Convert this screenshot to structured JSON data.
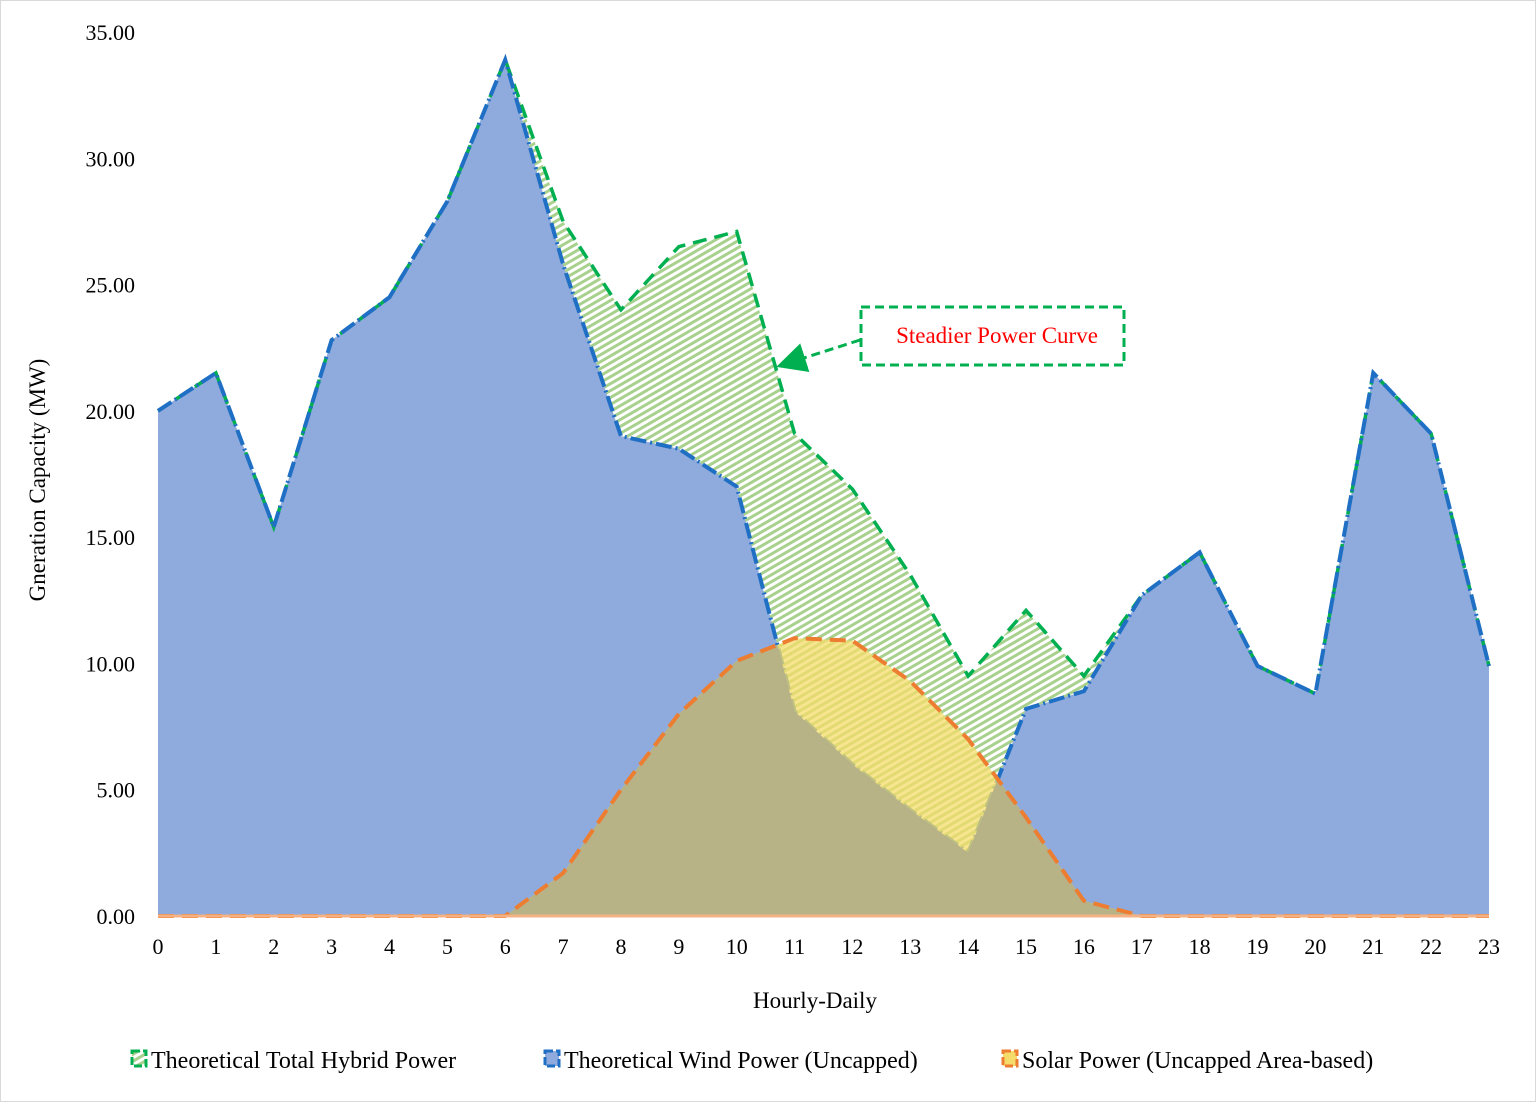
{
  "chart_data": {
    "type": "area",
    "title": "",
    "xlabel": "Hourly-Daily",
    "ylabel": "Gneration Capacity (MW)",
    "ylim": [
      0,
      35
    ],
    "yticks": [
      "0.00",
      "5.00",
      "10.00",
      "15.00",
      "20.00",
      "25.00",
      "30.00",
      "35.00"
    ],
    "x": [
      0,
      1,
      2,
      3,
      4,
      5,
      6,
      7,
      8,
      9,
      10,
      11,
      12,
      13,
      14,
      15,
      16,
      17,
      18,
      19,
      20,
      21,
      22,
      23
    ],
    "grid": false,
    "legend_position": "bottom",
    "series": [
      {
        "name": "Theoretical Total Hybrid Power",
        "color": "#00B050",
        "values": [
          20.0,
          21.5,
          15.4,
          22.8,
          24.5,
          28.3,
          33.9,
          27.5,
          24.0,
          26.5,
          27.1,
          19.1,
          16.9,
          13.5,
          9.5,
          12.1,
          9.5,
          12.7,
          14.4,
          9.9,
          8.8,
          21.5,
          19.1,
          9.9
        ]
      },
      {
        "name": "Theoretical Wind Power (Uncapped)",
        "color": "#1F6FC5",
        "values": [
          20.0,
          21.5,
          15.4,
          22.8,
          24.5,
          28.3,
          33.9,
          25.8,
          19.0,
          18.5,
          17.0,
          8.1,
          6.0,
          4.2,
          2.5,
          8.2,
          8.9,
          12.7,
          14.4,
          9.9,
          8.8,
          21.5,
          19.1,
          9.9
        ]
      },
      {
        "name": "Solar Power (Uncapped Area-based)",
        "color": "#ED7D31",
        "values": [
          0,
          0,
          0,
          0,
          0,
          0,
          0,
          1.7,
          5.0,
          8.0,
          10.1,
          11.0,
          10.9,
          9.3,
          7.0,
          3.9,
          0.6,
          0,
          0,
          0,
          0,
          0,
          0,
          0
        ]
      }
    ],
    "annotation": {
      "text": "Steadier Power Curve",
      "points_to_x": 10.7,
      "text_color": "#FF0000",
      "box_color": "#00B050"
    }
  }
}
